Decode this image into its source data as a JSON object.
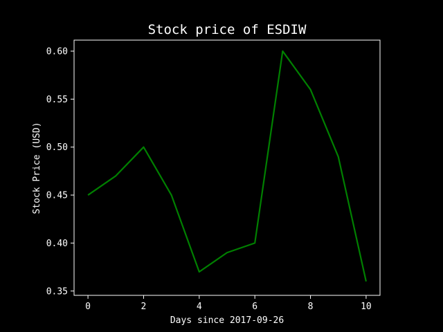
{
  "chart_data": {
    "type": "line",
    "title": "Stock price of ESDIW",
    "xlabel": "Days since 2017-09-26",
    "ylabel": "Stock Price (USD)",
    "x": [
      0,
      1,
      2,
      3,
      4,
      5,
      6,
      7,
      8,
      9,
      10
    ],
    "series": [
      {
        "color": "#008000",
        "values": [
          0.45,
          0.47,
          0.5,
          0.45,
          0.37,
          0.39,
          0.4,
          0.6,
          0.56,
          0.49,
          0.36
        ]
      }
    ],
    "xticks": [
      "0",
      "2",
      "4",
      "6",
      "8",
      "10"
    ],
    "yticks": [
      "0.35",
      "0.40",
      "0.45",
      "0.50",
      "0.55",
      "0.60"
    ],
    "xlim": [
      -0.5,
      10.5
    ],
    "ylim": [
      0.3455,
      0.6115
    ],
    "grid": false,
    "background": "#000000",
    "axis_color": "#ffffff"
  }
}
